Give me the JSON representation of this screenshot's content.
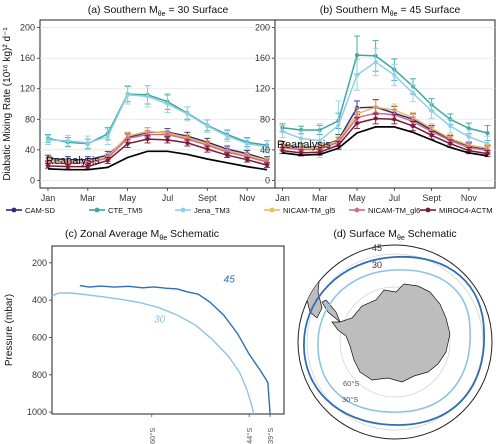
{
  "chart_data": [
    {
      "type": "line",
      "panel": "a",
      "title_prefix": "(a) Southern M",
      "title_sub": "θe",
      "title_suffix": " = 30 Surface",
      "ylabel": "Diabatic Mixing Rate (10¹⁶ kg)² d⁻¹",
      "ylim": [
        -10,
        210
      ],
      "yticks": [
        0,
        40,
        80,
        120,
        160,
        200
      ],
      "x": [
        1,
        2,
        3,
        4,
        5,
        6,
        7,
        8,
        9,
        10,
        11,
        12
      ],
      "xticks": [
        1,
        3,
        5,
        7,
        9,
        11
      ],
      "xtick_labels": [
        "Jan",
        "Mar",
        "May",
        "Jul",
        "Sept",
        "Nov"
      ],
      "annotation": "Reanalysis",
      "series": [
        {
          "name": "CAM-SD",
          "color": "#2e2882",
          "values": [
            29,
            27,
            27,
            33,
            56,
            63,
            63,
            58,
            50,
            41,
            35,
            27
          ],
          "err": [
            4,
            4,
            4,
            5,
            6,
            6,
            5,
            5,
            5,
            4,
            4,
            4
          ]
        },
        {
          "name": "CTE_TM5",
          "color": "#3aa99a",
          "values": [
            55,
            50,
            48,
            61,
            113,
            112,
            103,
            88,
            72,
            60,
            50,
            46
          ],
          "err": [
            5,
            6,
            6,
            8,
            10,
            12,
            10,
            8,
            7,
            6,
            6,
            6
          ]
        },
        {
          "name": "Jena_TM3",
          "color": "#8ed0ea",
          "values": [
            53,
            52,
            49,
            57,
            112,
            110,
            100,
            87,
            71,
            58,
            48,
            44
          ],
          "err": [
            6,
            7,
            9,
            10,
            12,
            14,
            11,
            9,
            8,
            7,
            7,
            8
          ]
        },
        {
          "name": "NICAM-TM_gl5",
          "color": "#e8bd58",
          "values": [
            26,
            24,
            24,
            31,
            58,
            64,
            62,
            56,
            48,
            39,
            33,
            26
          ],
          "err": [
            3,
            3,
            3,
            4,
            5,
            5,
            5,
            4,
            4,
            4,
            3,
            3
          ]
        },
        {
          "name": "NICAM-TM_gl6",
          "color": "#d26c8a",
          "values": [
            23,
            22,
            23,
            29,
            55,
            60,
            60,
            54,
            46,
            37,
            31,
            24
          ],
          "err": [
            3,
            3,
            3,
            4,
            5,
            5,
            4,
            4,
            4,
            3,
            3,
            3
          ]
        },
        {
          "name": "MIROC4-ACTM",
          "color": "#7a1b3c",
          "values": [
            19,
            18,
            18,
            26,
            48,
            54,
            53,
            49,
            41,
            33,
            27,
            20
          ],
          "err": [
            3,
            3,
            3,
            4,
            5,
            5,
            4,
            4,
            4,
            3,
            3,
            3
          ]
        },
        {
          "name": "Reanalysis",
          "color": "#000000",
          "values": [
            15,
            14,
            14,
            17,
            30,
            38,
            38,
            34,
            28,
            23,
            18,
            14
          ],
          "err": null
        }
      ]
    },
    {
      "type": "line",
      "panel": "b",
      "title_prefix": "(b) Southern M",
      "title_sub": "θe",
      "title_suffix": " = 45 Surface",
      "ylim": [
        -10,
        210
      ],
      "yticks": [
        0,
        40,
        80,
        120,
        160,
        200
      ],
      "x": [
        1,
        2,
        3,
        4,
        5,
        6,
        7,
        8,
        9,
        10,
        11,
        12
      ],
      "xticks": [
        1,
        3,
        5,
        7,
        9,
        11
      ],
      "xtick_labels": [
        "Jan",
        "Mar",
        "May",
        "Jul",
        "Sept",
        "Nov"
      ],
      "annotation": "Reanalysis",
      "series": [
        {
          "name": "CAM-SD",
          "color": "#2e2882",
          "values": [
            46,
            43,
            44,
            53,
            95,
            96,
            88,
            80,
            66,
            54,
            45,
            41
          ],
          "err": [
            5,
            5,
            5,
            7,
            9,
            10,
            9,
            7,
            6,
            5,
            5,
            5
          ]
        },
        {
          "name": "CTE_TM5",
          "color": "#3aa99a",
          "values": [
            69,
            66,
            66,
            78,
            164,
            163,
            145,
            123,
            99,
            80,
            68,
            62
          ],
          "err": [
            5,
            5,
            6,
            10,
            25,
            20,
            14,
            10,
            8,
            7,
            7,
            10
          ]
        },
        {
          "name": "Jena_TM3",
          "color": "#8ed0ea",
          "values": [
            64,
            55,
            52,
            72,
            138,
            155,
            138,
            114,
            91,
            71,
            57,
            48
          ],
          "err": [
            8,
            10,
            22,
            32,
            20,
            18,
            14,
            11,
            10,
            9,
            9,
            10
          ]
        },
        {
          "name": "NICAM-TM_gl5",
          "color": "#e8bd58",
          "values": [
            45,
            42,
            43,
            52,
            87,
            96,
            92,
            82,
            68,
            55,
            46,
            42
          ],
          "err": [
            4,
            4,
            4,
            6,
            8,
            9,
            8,
            7,
            6,
            5,
            5,
            5
          ]
        },
        {
          "name": "NICAM-TM_gl6",
          "color": "#d26c8a",
          "values": [
            43,
            40,
            41,
            50,
            82,
            88,
            86,
            77,
            64,
            52,
            43,
            39
          ],
          "err": [
            4,
            4,
            4,
            6,
            8,
            8,
            7,
            6,
            6,
            5,
            5,
            5
          ]
        },
        {
          "name": "MIROC4-ACTM",
          "color": "#7a1b3c",
          "values": [
            39,
            36,
            37,
            46,
            75,
            81,
            80,
            71,
            59,
            48,
            39,
            35
          ],
          "err": [
            4,
            4,
            4,
            5,
            7,
            7,
            6,
            6,
            5,
            5,
            4,
            4
          ]
        },
        {
          "name": "Reanalysis",
          "color": "#000000",
          "values": [
            36,
            33,
            34,
            42,
            62,
            70,
            70,
            63,
            53,
            43,
            36,
            32
          ],
          "err": null
        }
      ]
    },
    {
      "type": "line",
      "panel": "c",
      "title_prefix": "(c) Zonal Average M",
      "title_sub": "θe",
      "title_suffix": " Schematic",
      "ylabel": "Pressure (mbar)",
      "ylim": [
        1010,
        110
      ],
      "yticks": [
        200,
        400,
        600,
        800,
        1000
      ],
      "lat_marks": [
        "60°S",
        "44°S",
        "39°S"
      ],
      "series": [
        {
          "name": "45",
          "color": "#2f6eb4",
          "points": [
            [
              0.12,
              322
            ],
            [
              0.16,
              330
            ],
            [
              0.21,
              325
            ],
            [
              0.27,
              330
            ],
            [
              0.33,
              326
            ],
            [
              0.39,
              334
            ],
            [
              0.44,
              329
            ],
            [
              0.49,
              336
            ],
            [
              0.54,
              340
            ],
            [
              0.58,
              355
            ],
            [
              0.63,
              368
            ],
            [
              0.68,
              410
            ],
            [
              0.74,
              480
            ],
            [
              0.8,
              580
            ],
            [
              0.85,
              690
            ],
            [
              0.9,
              780
            ],
            [
              0.93,
              840
            ],
            [
              0.94,
              1010
            ]
          ]
        },
        {
          "name": "30",
          "color": "#8fc3e6",
          "points": [
            [
              0.0,
              378
            ],
            [
              0.03,
              362
            ],
            [
              0.08,
              362
            ],
            [
              0.14,
              370
            ],
            [
              0.22,
              382
            ],
            [
              0.3,
              396
            ],
            [
              0.38,
              414
            ],
            [
              0.46,
              440
            ],
            [
              0.54,
              480
            ],
            [
              0.62,
              535
            ],
            [
              0.69,
              610
            ],
            [
              0.76,
              700
            ],
            [
              0.81,
              790
            ],
            [
              0.84,
              880
            ],
            [
              0.86,
              960
            ],
            [
              0.87,
              1010
            ]
          ]
        }
      ]
    }
  ],
  "panel_d": {
    "title_prefix": "(d) Surface M",
    "title_sub": "θe",
    "title_suffix": " Schematic",
    "contours": [
      {
        "name": "45",
        "color": "#2f6eb4"
      },
      {
        "name": "30",
        "color": "#8fc3e6"
      }
    ],
    "grid_labels": [
      "60°S",
      "30°S"
    ]
  }
}
